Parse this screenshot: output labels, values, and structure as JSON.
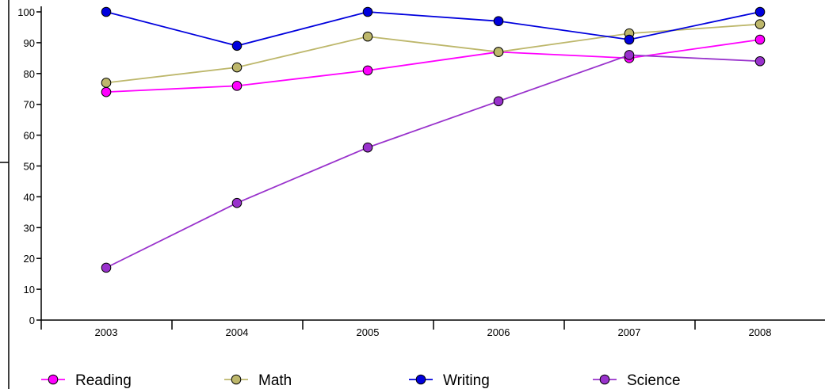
{
  "chart_data": {
    "type": "line",
    "categories": [
      "2003",
      "2004",
      "2005",
      "2006",
      "2007",
      "2008"
    ],
    "y_ticks": [
      "0",
      "10",
      "20",
      "30",
      "40",
      "50",
      "60",
      "70",
      "80",
      "90",
      "100"
    ],
    "ylim": [
      0,
      100
    ],
    "grid": false,
    "legend_position": "bottom",
    "series": [
      {
        "name": "Reading",
        "color": "#ff00ff",
        "values": [
          74,
          76,
          81,
          87,
          85,
          91
        ]
      },
      {
        "name": "Math",
        "color": "#bdb76b",
        "values": [
          77,
          82,
          92,
          87,
          93,
          96
        ]
      },
      {
        "name": "Writing",
        "color": "#0000dd",
        "values": [
          100,
          89,
          100,
          97,
          91,
          100
        ]
      },
      {
        "name": "Science",
        "color": "#9932cc",
        "values": [
          17,
          38,
          56,
          71,
          86,
          84
        ]
      }
    ]
  }
}
